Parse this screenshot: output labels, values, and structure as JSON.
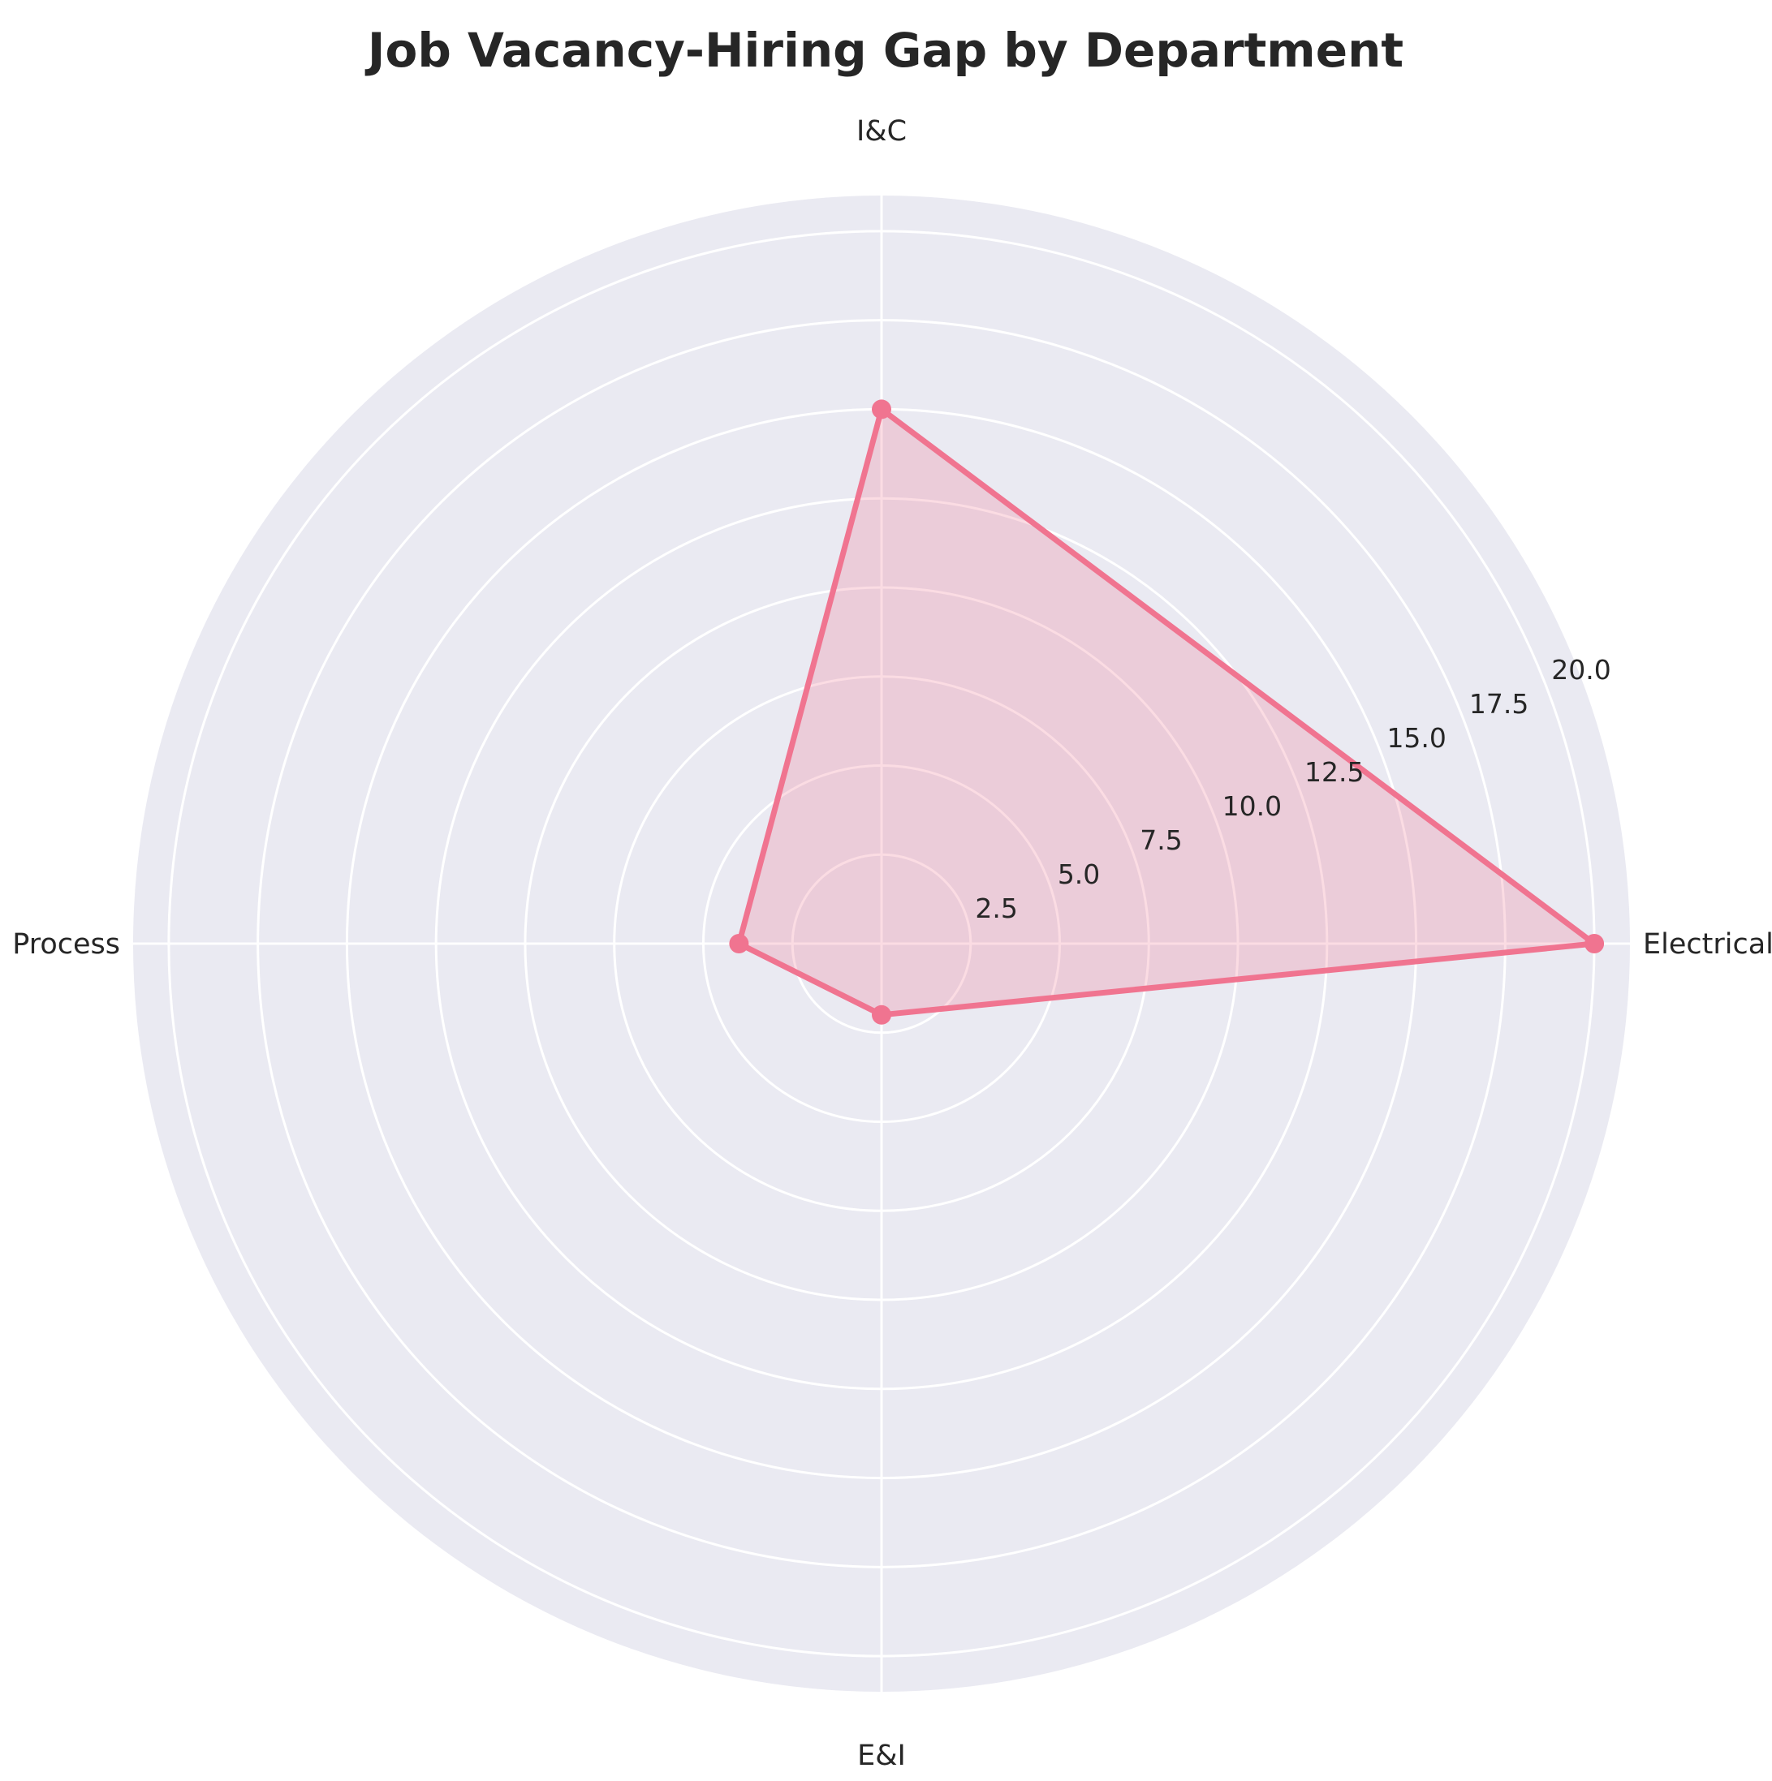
{
  "chart_data": {
    "type": "radar",
    "title": "Job Vacancy-Hiring Gap by Department",
    "categories": [
      "Electrical",
      "I&C",
      "Process",
      "E&I"
    ],
    "series": [
      {
        "values": [
          20,
          15,
          4,
          2
        ]
      }
    ],
    "rlim": [
      0,
      21
    ],
    "rticks": [
      2.5,
      5.0,
      7.5,
      10.0,
      12.5,
      15.0,
      17.5,
      20.0
    ],
    "rtick_labels": [
      "2.5",
      "5.0",
      "7.5",
      "10.0",
      "12.5",
      "15.0",
      "17.5",
      "20.0"
    ],
    "grid": true,
    "colors": {
      "plot_background": "#EAEAF2",
      "grid": "#FFFFFF",
      "series_line": "#F07490",
      "series_fill": "#F07490"
    }
  }
}
